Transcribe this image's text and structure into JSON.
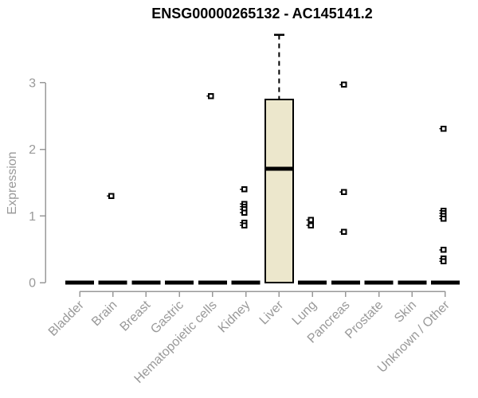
{
  "chart_data": {
    "type": "box",
    "title": "ENSG00000265132 - AC145141.2",
    "ylabel": "Expression",
    "xlabel": "",
    "yticks": [
      0,
      1,
      2,
      3
    ],
    "ylim": [
      0,
      3.9
    ],
    "grid": false,
    "legend": "none",
    "categories": [
      "Bladder",
      "Brain",
      "Breast",
      "Gastric",
      "Hematopoietic cells",
      "Kidney",
      "Liver",
      "Lung",
      "Pancreas",
      "Prostate",
      "Skin",
      "Unknown / Other"
    ],
    "boxes": [
      {
        "category": "Bladder",
        "q1": 0,
        "median": 0,
        "q3": 0,
        "whisker_low": 0,
        "whisker_high": 0,
        "outliers": []
      },
      {
        "category": "Brain",
        "q1": 0,
        "median": 0,
        "q3": 0,
        "whisker_low": 0,
        "whisker_high": 0,
        "outliers": [
          1.3
        ]
      },
      {
        "category": "Breast",
        "q1": 0,
        "median": 0,
        "q3": 0,
        "whisker_low": 0,
        "whisker_high": 0,
        "outliers": []
      },
      {
        "category": "Gastric",
        "q1": 0,
        "median": 0,
        "q3": 0,
        "whisker_low": 0,
        "whisker_high": 0,
        "outliers": []
      },
      {
        "category": "Hematopoietic cells",
        "q1": 0,
        "median": 0,
        "q3": 0,
        "whisker_low": 0,
        "whisker_high": 0,
        "outliers": [
          2.8
        ]
      },
      {
        "category": "Kidney",
        "q1": 0,
        "median": 0,
        "q3": 0,
        "whisker_low": 0,
        "whisker_high": 0,
        "outliers": [
          1.4,
          1.18,
          1.14,
          1.1,
          1.05,
          0.9,
          0.86
        ]
      },
      {
        "category": "Liver",
        "q1": 0,
        "median": 1.71,
        "q3": 2.75,
        "whisker_low": 0,
        "whisker_high": 3.72,
        "outliers": []
      },
      {
        "category": "Lung",
        "q1": 0,
        "median": 0,
        "q3": 0,
        "whisker_low": 0,
        "whisker_high": 0,
        "outliers": [
          0.94,
          0.86
        ]
      },
      {
        "category": "Pancreas",
        "q1": 0,
        "median": 0,
        "q3": 0,
        "whisker_low": 0,
        "whisker_high": 0,
        "outliers": [
          2.97,
          1.36,
          0.76
        ]
      },
      {
        "category": "Prostate",
        "q1": 0,
        "median": 0,
        "q3": 0,
        "whisker_low": 0,
        "whisker_high": 0,
        "outliers": []
      },
      {
        "category": "Skin",
        "q1": 0,
        "median": 0,
        "q3": 0,
        "whisker_low": 0,
        "whisker_high": 0,
        "outliers": []
      },
      {
        "category": "Unknown / Other",
        "q1": 0,
        "median": 0,
        "q3": 0,
        "whisker_low": 0,
        "whisker_high": 0,
        "outliers": [
          2.31,
          1.08,
          1.04,
          1.0,
          0.96,
          0.49,
          0.36,
          0.32
        ]
      }
    ],
    "colors": {
      "background": "#ffffff",
      "title": "#000000",
      "axis": "#999999",
      "tick_label": "#999999",
      "box_fill": "#ece7cc",
      "box_stroke": "#000000",
      "median": "#000000",
      "flat_bar": "#000000",
      "outlier": "#000000",
      "outlier_fill": "#ffffff"
    }
  }
}
